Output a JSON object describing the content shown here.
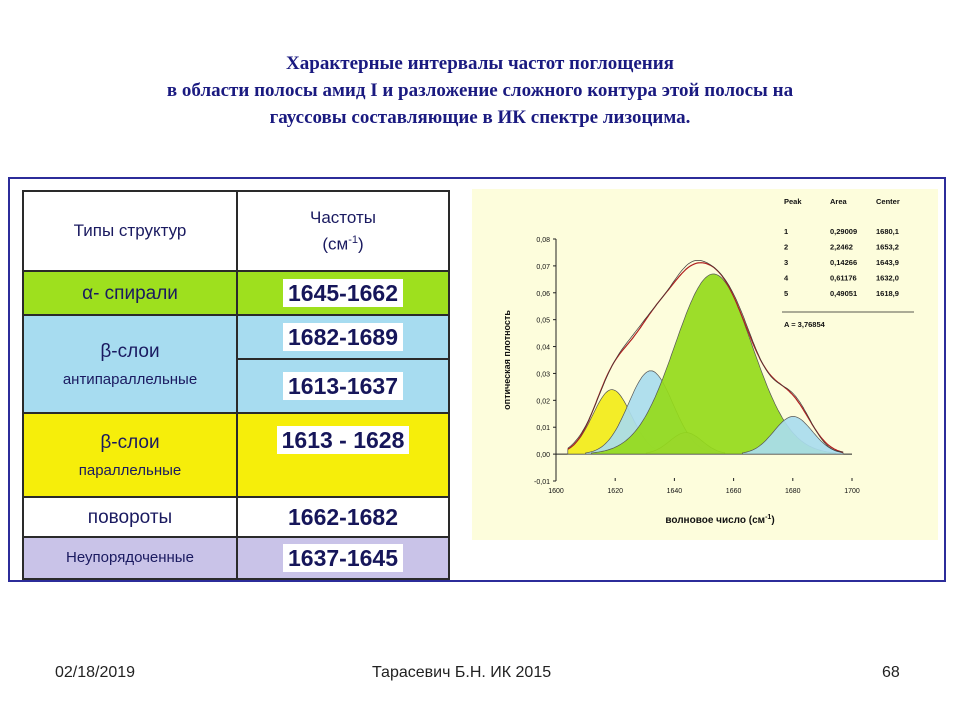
{
  "title": {
    "line1": "Характерные интервалы частот поглощения",
    "line2": "в области полосы амид I и разложение сложного контура этой полосы на",
    "line3": "гауссовы составляющие в ИК спектре лизоцима."
  },
  "table": {
    "header_col1": "Типы структур",
    "header_col2_line1": "Частоты",
    "header_col2_line2": "(см",
    "header_col2_sup": "-1",
    "header_col2_close": ")",
    "rows": [
      {
        "label": "α- спирали",
        "freq": "1645-1662",
        "color": "#9ee01e"
      },
      {
        "label": "β-слои",
        "sublabel": "антипараллельные",
        "freq": "1682-1689",
        "freq2": "1613-1637",
        "color": "#a7dcf0"
      },
      {
        "label": "β-слои",
        "sublabel": "параллельные",
        "freq": "1613 - 1628",
        "color": "#f6ee0a"
      },
      {
        "label": "повороты",
        "freq": "1662-1682",
        "color": "#ffffff"
      },
      {
        "label": "Неупорядоченные",
        "freq": "1637-1645",
        "color": "#c9c3e8"
      }
    ]
  },
  "chart_data": {
    "type": "area",
    "background": "#fdfddc",
    "xlabel": "волновое число (см",
    "xlabel_sup": "-1",
    "xlabel_close": ")",
    "ylabel": "оптическая плотность",
    "xlim": [
      1600,
      1700
    ],
    "ylim": [
      -0.01,
      0.08
    ],
    "x_ticks": [
      "1600",
      "1620",
      "1640",
      "1660",
      "1680",
      "1700"
    ],
    "y_ticks": [
      "-0,01",
      "0,00",
      "0,01",
      "0,02",
      "0,03",
      "0,04",
      "0,05",
      "0,06",
      "0,07",
      "0,08"
    ],
    "table_headers": [
      "Peak",
      "Area",
      "Center"
    ],
    "table_rows": [
      [
        "1",
        "0,29009",
        "1680,1"
      ],
      [
        "2",
        "2,2462",
        "1653,2"
      ],
      [
        "3",
        "0,14266",
        "1643,9"
      ],
      [
        "4",
        "0,61176",
        "1632,0"
      ],
      [
        "5",
        "0,49051",
        "1618,9"
      ]
    ],
    "total_area": "A = 3,76854",
    "components": [
      {
        "center": 1618.9,
        "amp": 0.024,
        "sigma": 6.5,
        "color": "#f2ec18"
      },
      {
        "center": 1632.0,
        "amp": 0.031,
        "sigma": 7.5,
        "color": "#a9dcee"
      },
      {
        "center": 1643.9,
        "amp": 0.008,
        "sigma": 5.5,
        "color": "#c6b8e6"
      },
      {
        "center": 1653.2,
        "amp": 0.067,
        "sigma": 13,
        "color": "#95da1a"
      },
      {
        "center": 1680.1,
        "amp": 0.014,
        "sigma": 6.5,
        "color": "#a9dcee"
      }
    ],
    "envelope_color": "#b01e1e"
  },
  "footer": {
    "date": "02/18/2019",
    "author": "Тарасевич Б.Н.  ИК 2015",
    "page": "68"
  }
}
